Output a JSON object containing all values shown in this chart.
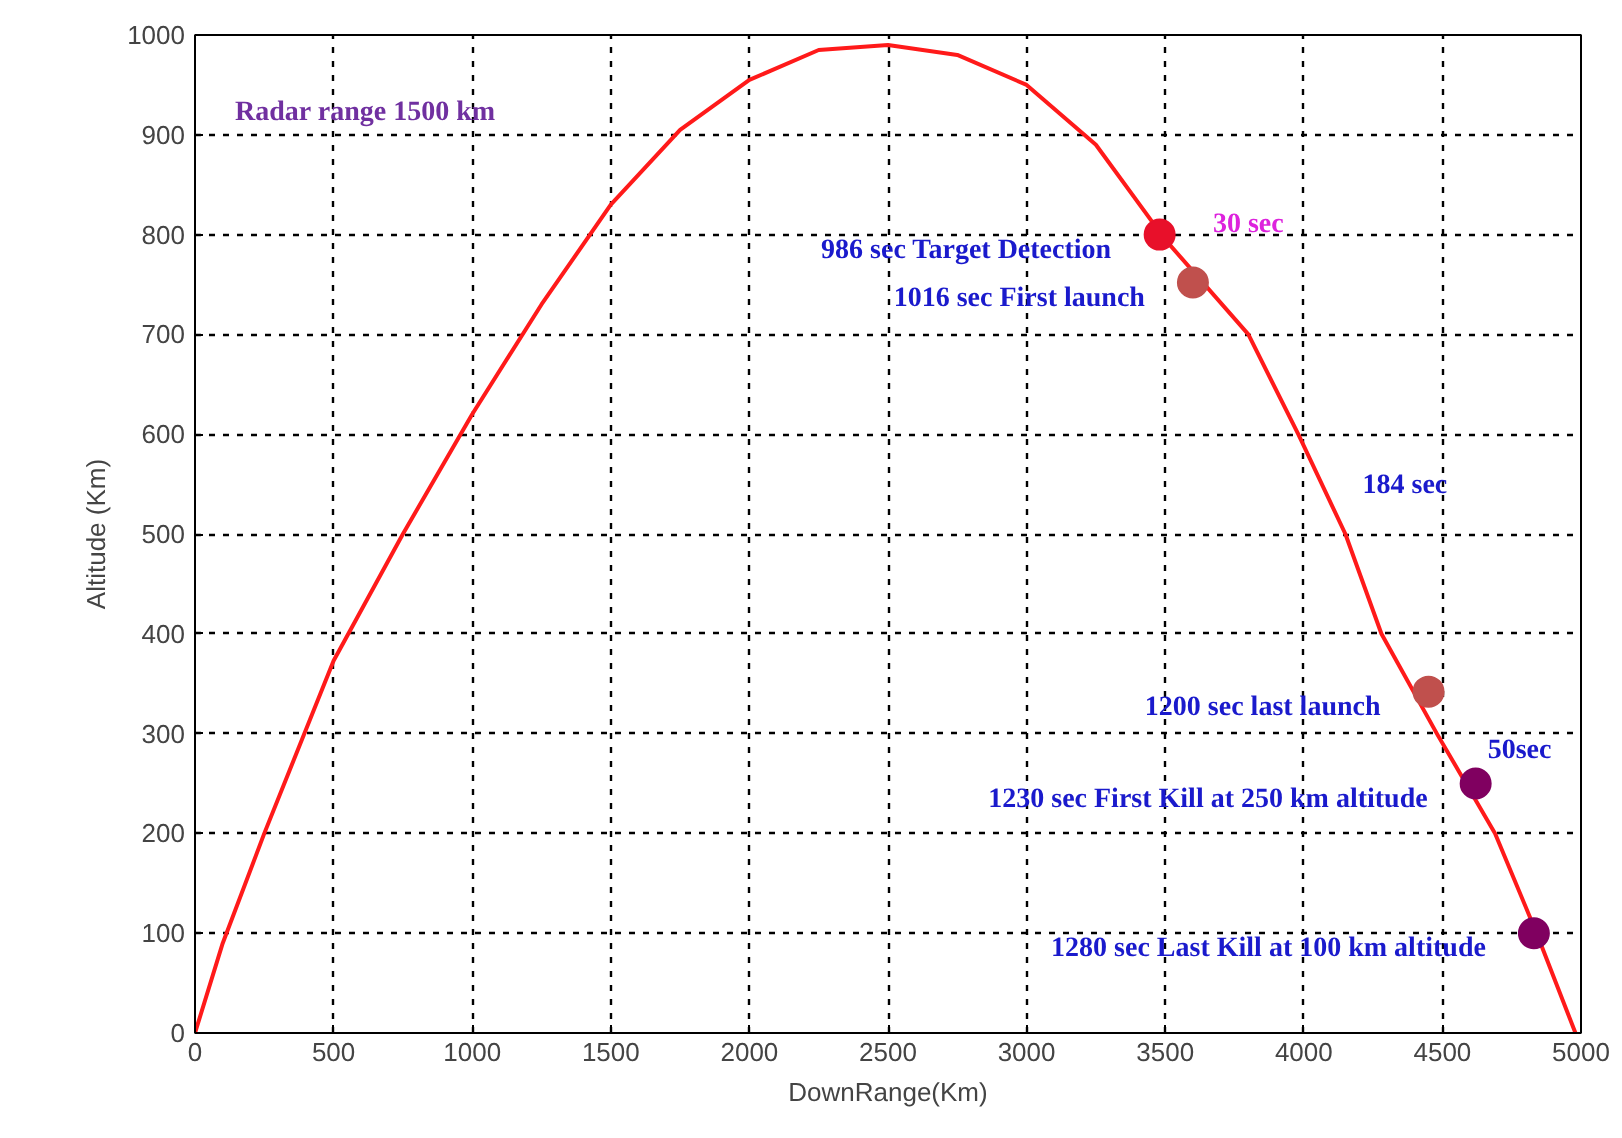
{
  "chart_data": {
    "type": "line",
    "xlabel": "DownRange(Km)",
    "ylabel": "Altitude (Km)",
    "xlim": [
      0,
      5000
    ],
    "ylim": [
      0,
      1000
    ],
    "xticks": [
      0,
      500,
      1000,
      1500,
      2000,
      2500,
      3000,
      3500,
      4000,
      4500,
      5000
    ],
    "yticks": [
      0,
      100,
      200,
      300,
      400,
      500,
      600,
      700,
      800,
      900,
      1000
    ],
    "grid": true,
    "line_style": "solid",
    "series": [
      {
        "color": "#ff1a1a",
        "x": [
          0,
          100,
          250,
          500,
          750,
          1000,
          1250,
          1500,
          1750,
          2000,
          2250,
          2500,
          2750,
          3000,
          3250,
          3500,
          3800,
          3980,
          4150,
          4280,
          4480,
          4690,
          4840,
          4980
        ],
        "values": [
          0,
          90,
          200,
          373,
          500,
          620,
          730,
          830,
          905,
          955,
          985,
          990,
          980,
          950,
          890,
          795,
          700,
          600,
          500,
          400,
          300,
          200,
          100,
          0
        ]
      },
      {
        "type": "scatter",
        "marker": "circle",
        "colors": [
          "#e8102a",
          "#c0504d",
          "#c0504d",
          "#800060",
          "#800060"
        ],
        "x": [
          3480,
          3600,
          4450,
          4620,
          4830
        ],
        "values": [
          800,
          752,
          342,
          250,
          100
        ]
      }
    ],
    "annotations": [
      "Radar range 1500 km",
      {
        "text": "986 sec Target Detection",
        "x": 3480,
        "y": 800
      },
      {
        "text": "1016 sec First launch",
        "x": 3600,
        "y": 752
      },
      "30 sec",
      "184 sec",
      {
        "text": "1200 sec last launch",
        "x": 4450,
        "y": 342
      },
      {
        "text": "1230 sec First Kill at 250 km altitude",
        "x": 4620,
        "y": 250
      },
      "50sec",
      {
        "text": "1280 sec Last Kill at 100 km altitude",
        "x": 4830,
        "y": 100
      }
    ]
  }
}
